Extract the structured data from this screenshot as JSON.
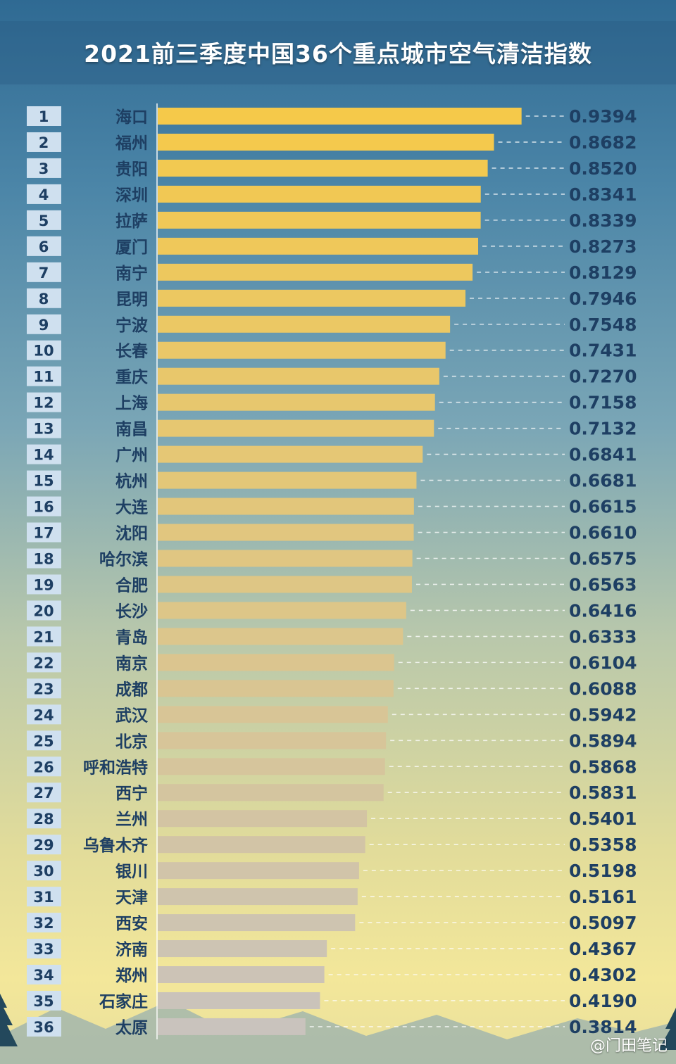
{
  "chart_data": {
    "type": "bar",
    "orientation": "horizontal",
    "title": "2021前三季度中国36个重点城市空气清洁指数",
    "ranks": [
      "1",
      "2",
      "3",
      "4",
      "5",
      "6",
      "7",
      "8",
      "9",
      "10",
      "11",
      "12",
      "13",
      "14",
      "15",
      "16",
      "17",
      "18",
      "19",
      "20",
      "21",
      "22",
      "23",
      "24",
      "25",
      "26",
      "27",
      "28",
      "29",
      "30",
      "31",
      "32",
      "33",
      "34",
      "35",
      "36"
    ],
    "categories": [
      "海口",
      "福州",
      "贵阳",
      "深圳",
      "拉萨",
      "厦门",
      "南宁",
      "昆明",
      "宁波",
      "长春",
      "重庆",
      "上海",
      "南昌",
      "广州",
      "杭州",
      "大连",
      "沈阳",
      "哈尔滨",
      "合肥",
      "长沙",
      "青岛",
      "南京",
      "成都",
      "武汉",
      "北京",
      "呼和浩特",
      "西宁",
      "兰州",
      "乌鲁木齐",
      "银川",
      "天津",
      "西安",
      "济南",
      "郑州",
      "石家庄",
      "太原"
    ],
    "values": [
      0.9394,
      0.8682,
      0.852,
      0.8341,
      0.8339,
      0.8273,
      0.8129,
      0.7946,
      0.7548,
      0.7431,
      0.727,
      0.7158,
      0.7132,
      0.6841,
      0.6681,
      0.6615,
      0.661,
      0.6575,
      0.6563,
      0.6416,
      0.6333,
      0.6104,
      0.6088,
      0.5942,
      0.5894,
      0.5868,
      0.5831,
      0.5401,
      0.5358,
      0.5198,
      0.5161,
      0.5097,
      0.4367,
      0.4302,
      0.419,
      0.3814
    ],
    "value_labels": [
      "0.9394",
      "0.8682",
      "0.8520",
      "0.8341",
      "0.8339",
      "0.8273",
      "0.8129",
      "0.7946",
      "0.7548",
      "0.7431",
      "0.7270",
      "0.7158",
      "0.7132",
      "0.6841",
      "0.6681",
      "0.6615",
      "0.6610",
      "0.6575",
      "0.6563",
      "0.6416",
      "0.6333",
      "0.6104",
      "0.6088",
      "0.5942",
      "0.5894",
      "0.5868",
      "0.5831",
      "0.5401",
      "0.5358",
      "0.5198",
      "0.5161",
      "0.5097",
      "0.4367",
      "0.4302",
      "0.4190",
      "0.3814"
    ],
    "xlim": [
      0,
      1
    ],
    "grid": false,
    "legend": "none",
    "colors": {
      "top": "#f5c94a",
      "bottom": "#c9c3bd"
    }
  },
  "watermark": "@门田笔记"
}
